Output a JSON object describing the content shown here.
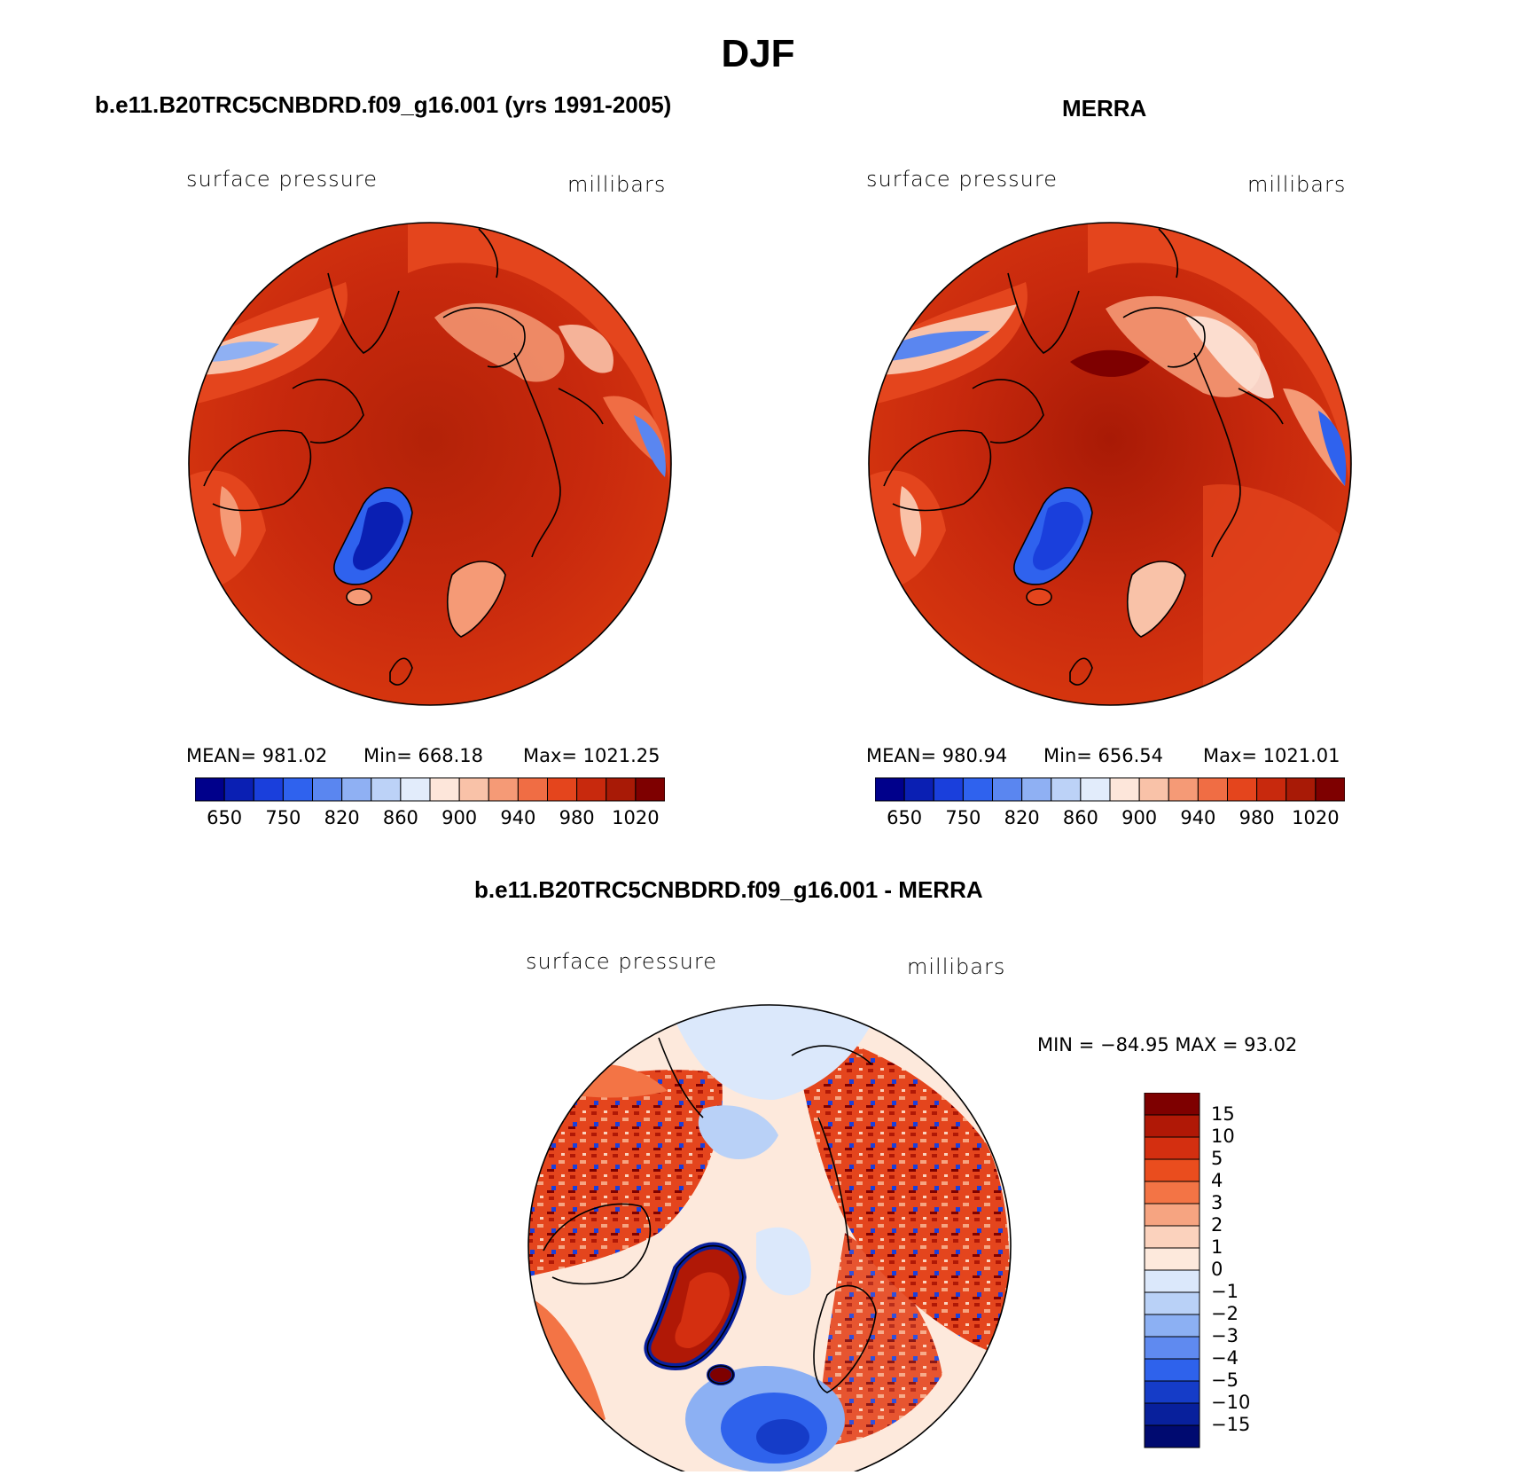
{
  "figure": {
    "title": "DJF"
  },
  "panels": [
    {
      "id": "model",
      "title": "b.e11.B20TRC5CNBDRD.f09_g16.001 (yrs 1991-2005)",
      "variable": "surface pressure",
      "units": "millibars",
      "stats": {
        "mean": "MEAN= 981.02",
        "min": "Min= 668.18",
        "max": "Max= 1021.25"
      },
      "colorbar_labels": [
        "650",
        "750",
        "820",
        "860",
        "900",
        "940",
        "980",
        "1020"
      ]
    },
    {
      "id": "obs",
      "title": "MERRA",
      "variable": "surface pressure",
      "units": "millibars",
      "stats": {
        "mean": "MEAN= 980.94",
        "min": "Min= 656.54",
        "max": "Max= 1021.01"
      },
      "colorbar_labels": [
        "650",
        "750",
        "820",
        "860",
        "900",
        "940",
        "980",
        "1020"
      ]
    }
  ],
  "diff_panel": {
    "title": "b.e11.B20TRC5CNBDRD.f09_g16.001 - MERRA",
    "variable": "surface pressure",
    "units": "millibars",
    "minmax": "MIN = −84.95 MAX =   93.02",
    "colorbar_labels": [
      "15",
      "10",
      "5",
      "4",
      "3",
      "2",
      "1",
      "0",
      "−1",
      "−2",
      "−3",
      "−4",
      "−5",
      "−10",
      "−15"
    ]
  },
  "colors": {
    "abs_scale": [
      "#00008b",
      "#0a1fb3",
      "#1a3fdc",
      "#2f62ee",
      "#5a86f0",
      "#8fb0f3",
      "#bcd2f7",
      "#e2ecfb",
      "#fde6da",
      "#f9c2a8",
      "#f59a76",
      "#f06d44",
      "#e4451d",
      "#c8290d",
      "#a81a06",
      "#7e0000"
    ],
    "diff_scale": [
      "#7e0000",
      "#b01806",
      "#d42f10",
      "#ea4d1e",
      "#f37445",
      "#f6a481",
      "#fbd2bd",
      "#fde9dc",
      "#dbe8fb",
      "#b9d1f7",
      "#8cb0f3",
      "#5f8af0",
      "#2e62ec",
      "#153cc8",
      "#08209c",
      "#000a70"
    ]
  },
  "chart_data": [
    {
      "type": "heatmap",
      "title": "b.e11.B20TRC5CNBDRD.f09_g16.001 (yrs 1991-2005)",
      "variable": "surface pressure",
      "units": "millibars",
      "projection": "north polar stereographic",
      "mean": 981.02,
      "min": 668.18,
      "max": 1021.25,
      "levels": [
        650,
        700,
        750,
        800,
        820,
        840,
        860,
        880,
        900,
        920,
        940,
        960,
        980,
        1000,
        1020
      ]
    },
    {
      "type": "heatmap",
      "title": "MERRA",
      "variable": "surface pressure",
      "units": "millibars",
      "projection": "north polar stereographic",
      "mean": 980.94,
      "min": 656.54,
      "max": 1021.01,
      "levels": [
        650,
        700,
        750,
        800,
        820,
        840,
        860,
        880,
        900,
        920,
        940,
        960,
        980,
        1000,
        1020
      ]
    },
    {
      "type": "heatmap",
      "title": "b.e11.B20TRC5CNBDRD.f09_g16.001 - MERRA",
      "variable": "surface pressure",
      "units": "millibars",
      "projection": "north polar stereographic",
      "min": -84.95,
      "max": 93.02,
      "levels": [
        -15,
        -10,
        -5,
        -4,
        -3,
        -2,
        -1,
        0,
        1,
        2,
        3,
        4,
        5,
        10,
        15
      ]
    }
  ]
}
